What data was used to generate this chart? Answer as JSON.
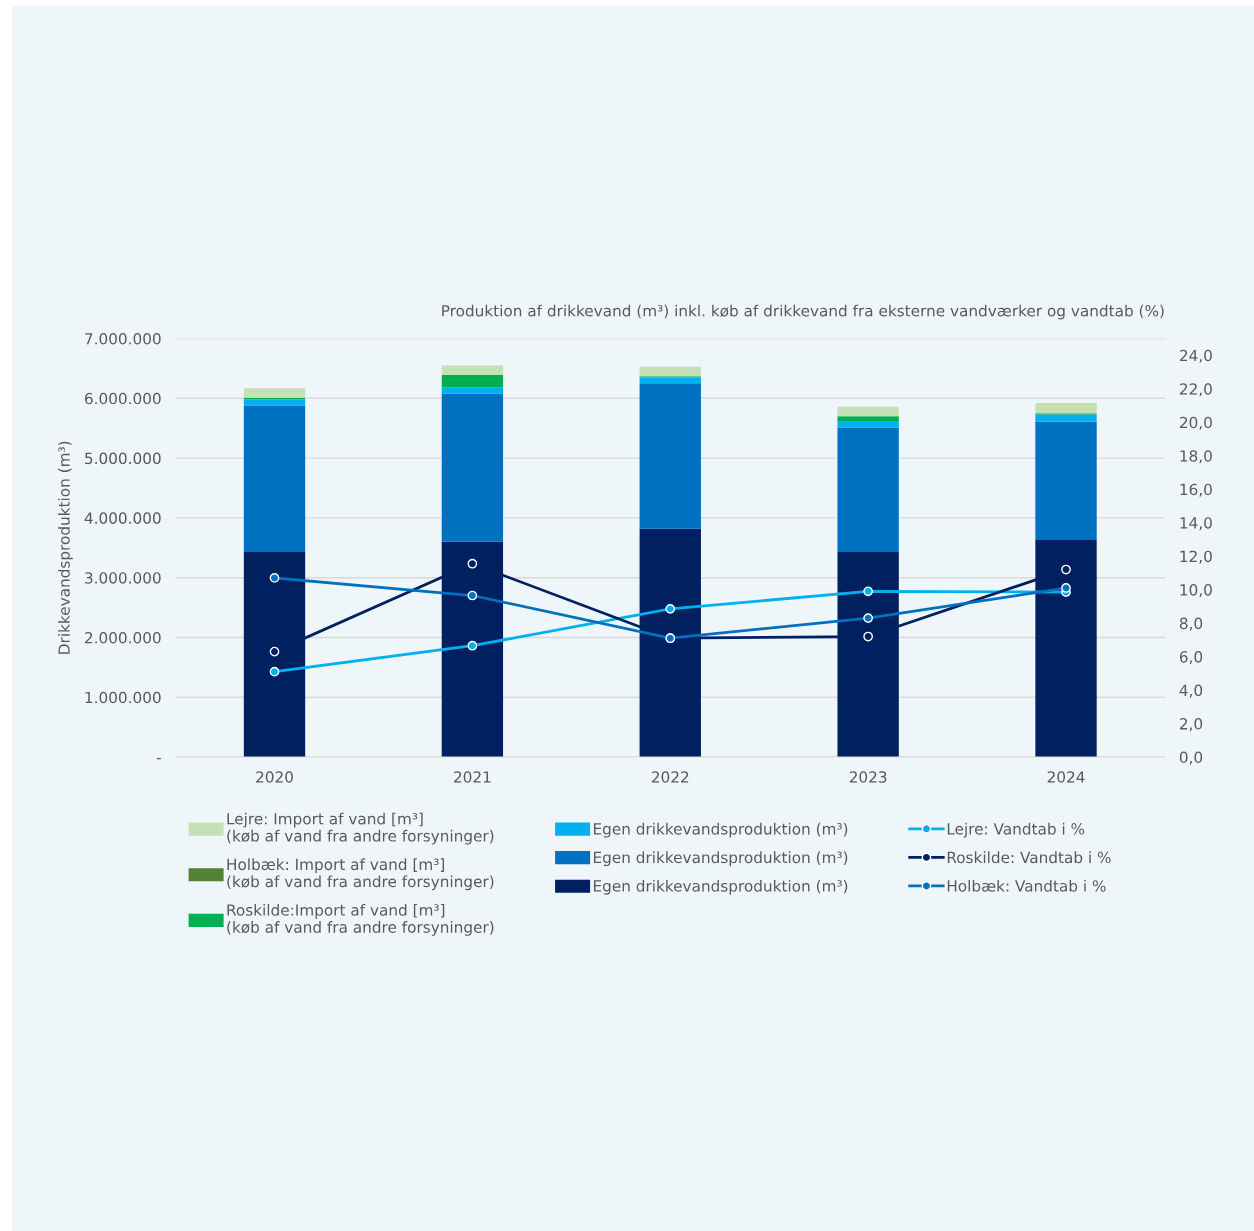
{
  "chart_data": {
    "type": "bar",
    "stacked": true,
    "title": "Produktion af drikkevand (m³) inkl. køb af drikkevand fra eksterne vandværker og vandtab (%)",
    "ylabel": "Drikkevandsproduktion (m³)",
    "categories": [
      "2020",
      "2021",
      "2022",
      "2023",
      "2024"
    ],
    "series": [
      {
        "name": "Egen drikkevandsproduktion (m³)",
        "color": "#002060",
        "values": [
          3430000,
          3600000,
          3820000,
          3430000,
          3630000
        ]
      },
      {
        "name": "Egen drikkevandsproduktion (m³)",
        "color": "#0070c0",
        "values": [
          2450000,
          2480000,
          2430000,
          2080000,
          1980000
        ]
      },
      {
        "name": "Egen drikkevandsproduktion (m³)",
        "color": "#00b0f0",
        "values": [
          100000,
          100000,
          100000,
          110000,
          120000
        ]
      },
      {
        "name": "Roskilde:Import af vand [m³]\n(køb af vand fra andre forsyninger)",
        "color": "#00b050",
        "values": [
          30000,
          210000,
          20000,
          80000,
          20000
        ]
      },
      {
        "name": "Holbæk: Import af vand [m³]\n(køb af vand fra andre forsyninger)",
        "color": "#548235",
        "values": [
          0,
          0,
          0,
          0,
          0
        ]
      },
      {
        "name": "Lejre: Import af vand [m³]\n(køb af vand fra andre forsyninger)",
        "color": "#c5e0b4",
        "values": [
          160000,
          160000,
          160000,
          160000,
          170000
        ]
      },
      {
        "name": "Lejre: Vandtab i %",
        "type": "line",
        "axis": "y2",
        "color": "#00b0f0",
        "values": [
          5.1,
          6.65,
          8.85,
          9.9,
          9.85
        ]
      },
      {
        "name": "Roskilde: Vandtab i %",
        "type": "line",
        "axis": "y2",
        "color": "#002060",
        "values": [
          6.3,
          11.55,
          7.1,
          7.2,
          11.2
        ]
      },
      {
        "name": "Holbæk: Vandtab i %",
        "type": "line",
        "axis": "y2",
        "color": "#0070c0",
        "values": [
          10.7,
          9.65,
          7.1,
          8.3,
          10.1
        ]
      }
    ],
    "ylim": [
      0,
      7000000
    ],
    "yticks": [
      {
        "value": 0,
        "label": "-"
      },
      {
        "value": 1000000,
        "label": "1.000.000"
      },
      {
        "value": 2000000,
        "label": "2.000.000"
      },
      {
        "value": 3000000,
        "label": "3.000.000"
      },
      {
        "value": 4000000,
        "label": "4.000.000"
      },
      {
        "value": 5000000,
        "label": "5.000.000"
      },
      {
        "value": 6000000,
        "label": "6.000.000"
      },
      {
        "value": 7000000,
        "label": "7.000.000"
      }
    ],
    "y2lim": [
      0,
      25
    ],
    "y2ticks": [
      {
        "value": 0,
        "label": "0,0"
      },
      {
        "value": 2,
        "label": "2,0"
      },
      {
        "value": 4,
        "label": "4,0"
      },
      {
        "value": 6,
        "label": "6,0"
      },
      {
        "value": 8,
        "label": "8,0"
      },
      {
        "value": 10,
        "label": "10,0"
      },
      {
        "value": 12,
        "label": "12,0"
      },
      {
        "value": 14,
        "label": "14,0"
      },
      {
        "value": 16,
        "label": "16,0"
      },
      {
        "value": 18,
        "label": "18,0"
      },
      {
        "value": 20,
        "label": "20,0"
      },
      {
        "value": 22,
        "label": "22,0"
      },
      {
        "value": 24,
        "label": "24,0"
      }
    ],
    "grid": "y",
    "legend": "bottom",
    "marker": "circle",
    "line_style": "solid"
  }
}
